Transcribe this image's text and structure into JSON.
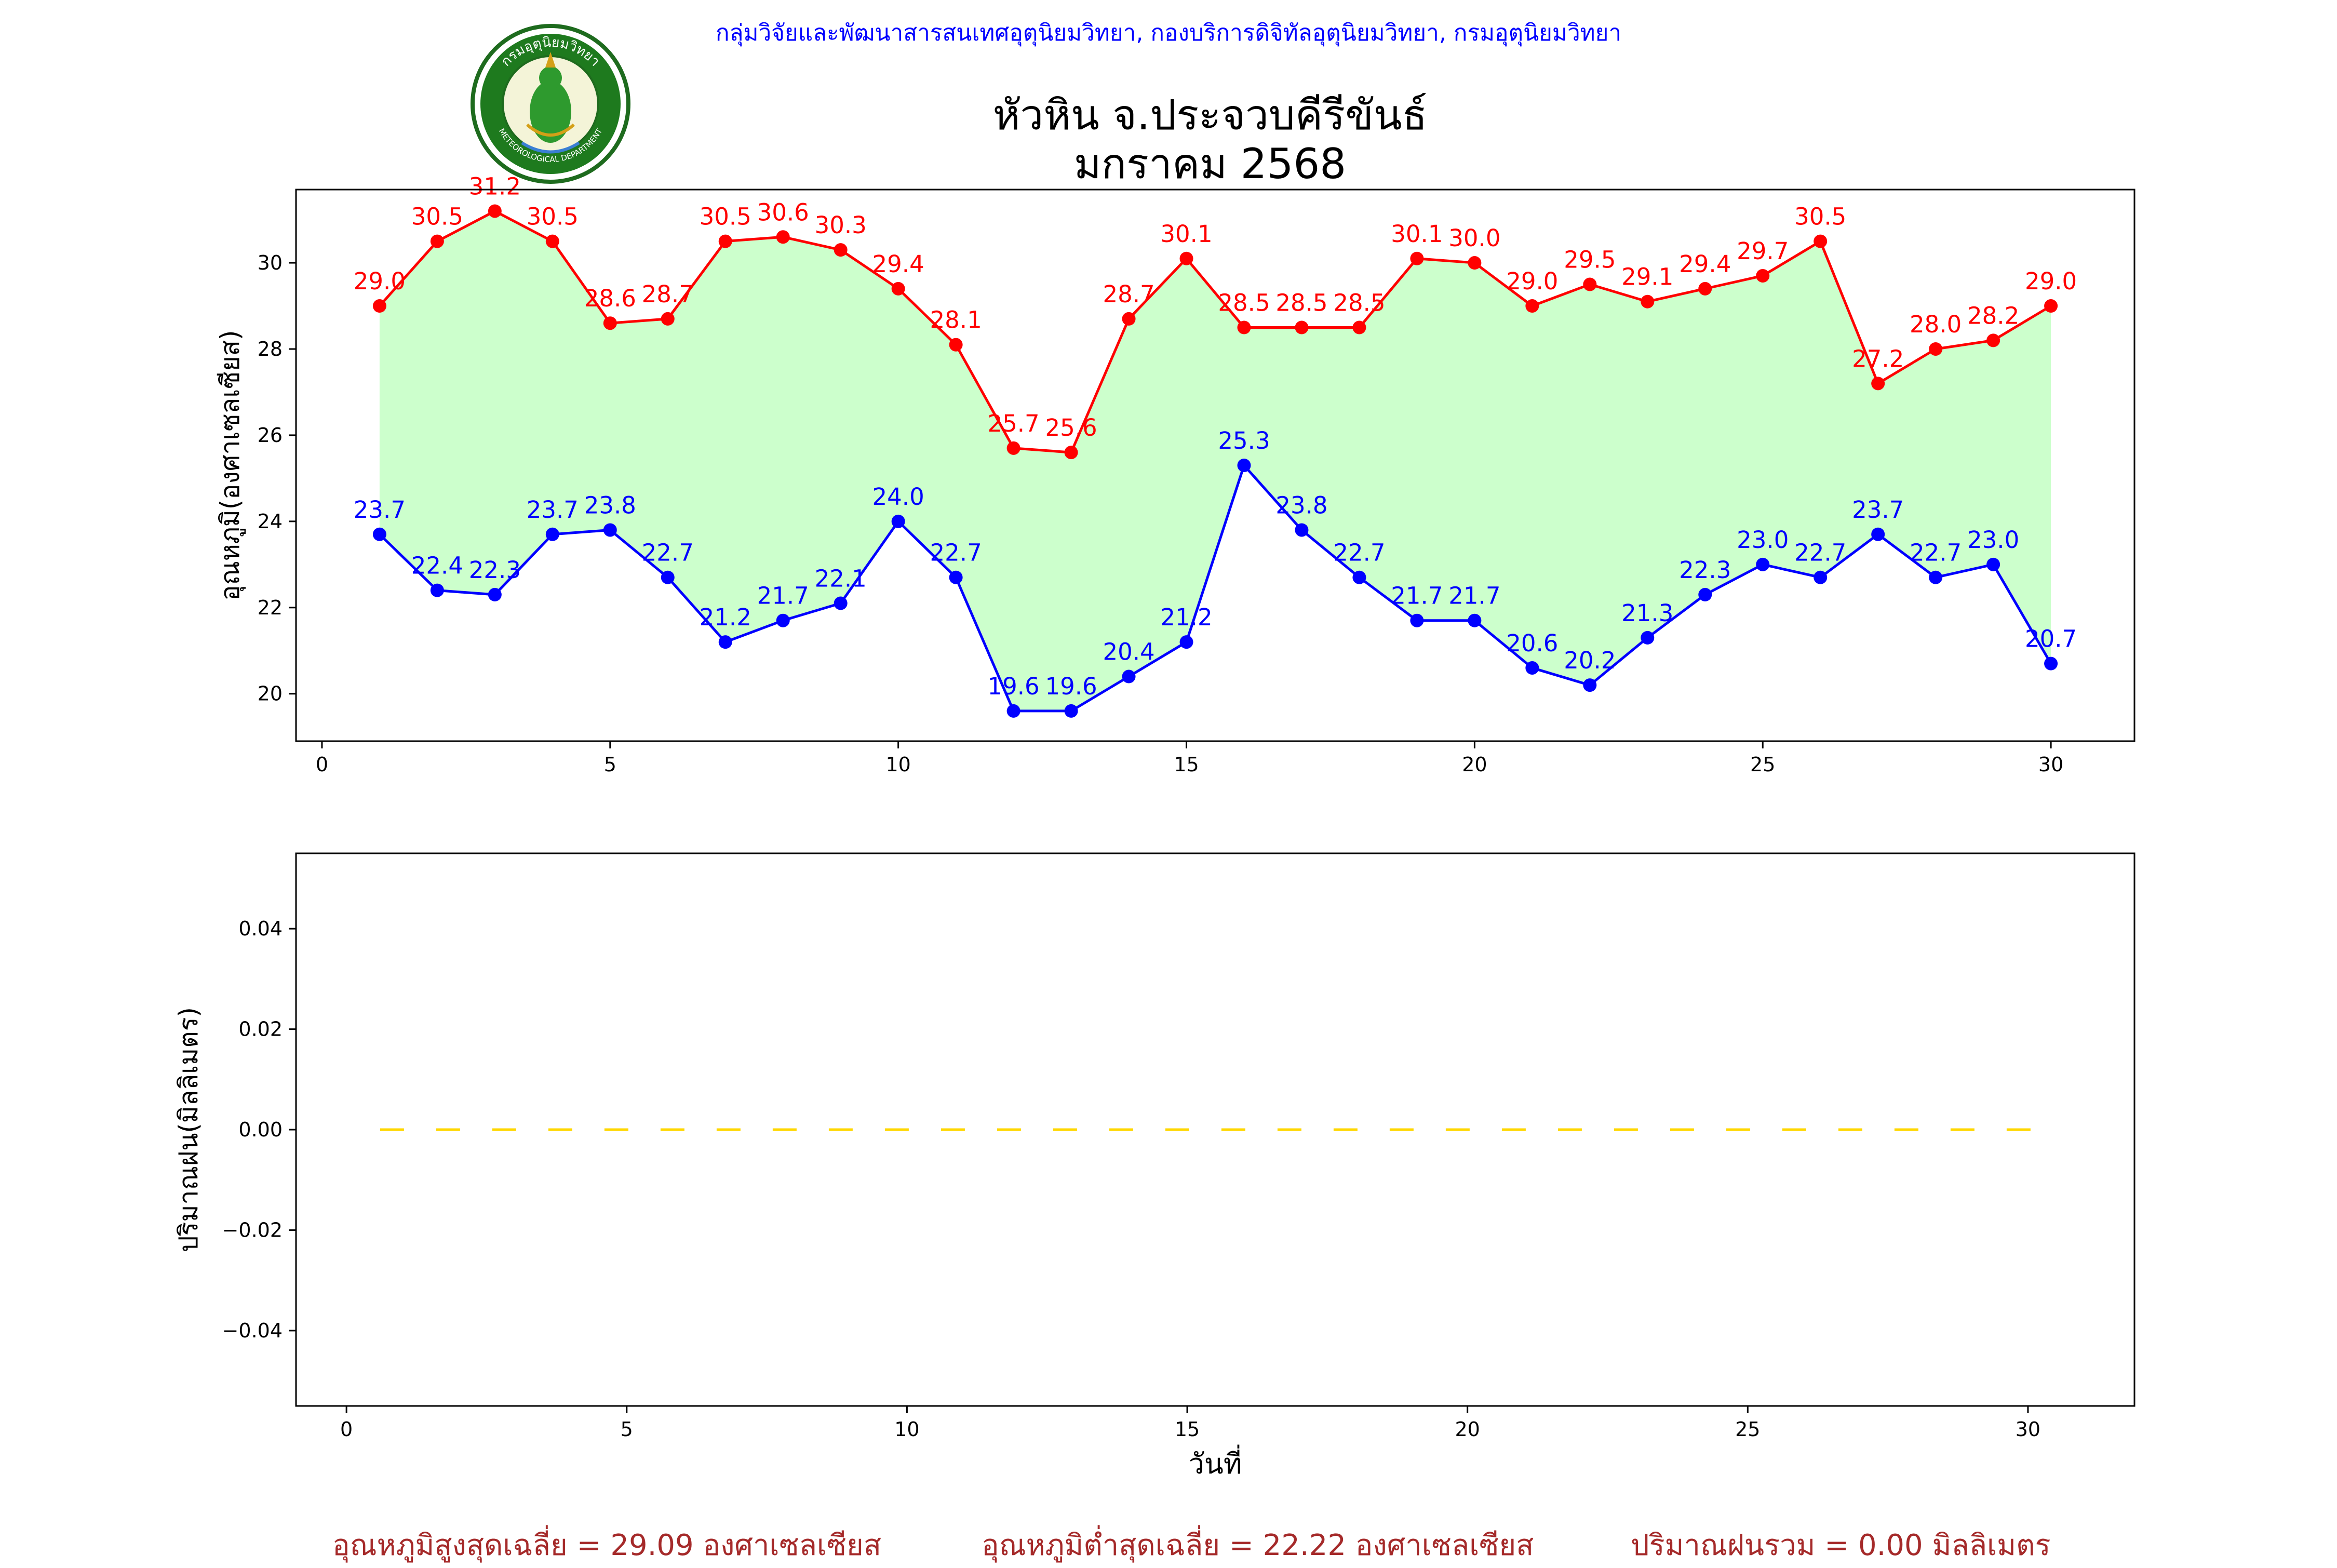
{
  "header": {
    "agency": "กลุ่มวิจัยและพัฒนาสารสนเทศอุตุนิยมวิทยา, กองบริการดิจิทัลอุตุนิยมวิทยา, กรมอุตุนิยมวิทยา",
    "title_line1": "หัวหิน จ.ประจวบคีรีขันธ์",
    "title_line2": "มกราคม 2568",
    "logo_text_top": "กรมอุตุนิยมวิทยา",
    "logo_text_bottom": "METEOROLOGICAL DEPARTMENT"
  },
  "footer": {
    "avg_max": "อุณหภูมิสูงสุดเฉลี่ย = 29.09 องศาเซลเซียส",
    "avg_min": "อุณหภูมิต่ำสุดเฉลี่ย = 22.22 องศาเซลเซียส",
    "rain_total": "ปริมาณฝนรวม = 0.00 มิลลิเมตร"
  },
  "colors": {
    "max": "#ff0000",
    "min": "#0000ff",
    "fill": "#ccffcc",
    "rain": "#ffd700",
    "footer": "#a52a2a",
    "agency": "#0000ff"
  },
  "chart_data": [
    {
      "type": "line",
      "ylabel": "อุณหภูมิ(องศาเซลเซียส)",
      "xlabel": "",
      "xlim": [
        -0.45,
        31.45
      ],
      "ylim": [
        18.9,
        31.7
      ],
      "xticks": [
        0,
        5,
        10,
        15,
        20,
        25,
        30
      ],
      "yticks": [
        20,
        22,
        24,
        26,
        28,
        30
      ],
      "fill_between": "max-min",
      "grid": false,
      "x": [
        1,
        2,
        3,
        4,
        5,
        6,
        7,
        8,
        9,
        10,
        11,
        12,
        13,
        14,
        15,
        16,
        17,
        18,
        19,
        20,
        21,
        22,
        23,
        24,
        25,
        26,
        27,
        28,
        29,
        30
      ],
      "series": [
        {
          "values": [
            29.0,
            30.5,
            31.2,
            30.5,
            28.6,
            28.7,
            30.5,
            30.6,
            30.3,
            29.4,
            28.1,
            25.7,
            25.6,
            28.7,
            30.1,
            28.5,
            28.5,
            28.5,
            30.1,
            30.0,
            29.0,
            29.5,
            29.1,
            29.4,
            29.7,
            30.5,
            27.2,
            28.0,
            28.2,
            29.0
          ],
          "labels": [
            "29.0",
            "30.5",
            "31.2",
            "30.5",
            "28.6",
            "28.7",
            "30.5",
            "30.6",
            "30.3",
            "29.4",
            "28.1",
            "25.7",
            "25.6",
            "28.7",
            "30.1",
            "28.5",
            "28.5",
            "28.5",
            "30.1",
            "30.0",
            "29.0",
            "29.5",
            "29.1",
            "29.4",
            "29.7",
            "30.5",
            "27.2",
            "28.0",
            "28.2",
            "29.0"
          ],
          "color": "#ff0000",
          "marker": "circle"
        },
        {
          "values": [
            23.7,
            22.4,
            22.3,
            23.7,
            23.8,
            22.7,
            21.2,
            21.7,
            22.1,
            24.0,
            22.7,
            19.6,
            19.6,
            20.4,
            21.2,
            25.3,
            23.8,
            22.7,
            21.7,
            21.7,
            20.6,
            20.2,
            21.3,
            22.3,
            23.0,
            22.7,
            23.7,
            22.7,
            23.0,
            20.7
          ],
          "labels": [
            "23.7",
            "22.4",
            "22.3",
            "23.7",
            "23.8",
            "22.7",
            "21.2",
            "21.7",
            "22.1",
            "24.0",
            "22.7",
            "19.6",
            "19.6",
            "20.4",
            "21.2",
            "25.3",
            "23.8",
            "22.7",
            "21.7",
            "21.7",
            "20.6",
            "20.2",
            "21.3",
            "22.3",
            "23.0",
            "22.7",
            "23.7",
            "22.7",
            "23.0",
            "20.7"
          ],
          "color": "#0000ff",
          "marker": "circle"
        }
      ]
    },
    {
      "type": "line",
      "ylabel": "ปริมาณฝน(มิลลิเมตร)",
      "xlabel": "วันที่",
      "xlim": [
        -0.9,
        31.9
      ],
      "ylim": [
        -0.055,
        0.055
      ],
      "xticks": [
        0,
        5,
        10,
        15,
        20,
        25,
        30
      ],
      "yticks": [
        -0.04,
        -0.02,
        0.0,
        0.02,
        0.04
      ],
      "ytick_labels": [
        "−0.04",
        "−0.02",
        "0.00",
        "0.02",
        "0.04"
      ],
      "grid": false,
      "series": [
        {
          "x": [
            0.6,
            30.4
          ],
          "values": [
            0.0,
            0.0
          ],
          "color": "#ffd700",
          "style": "dashed"
        }
      ]
    }
  ]
}
